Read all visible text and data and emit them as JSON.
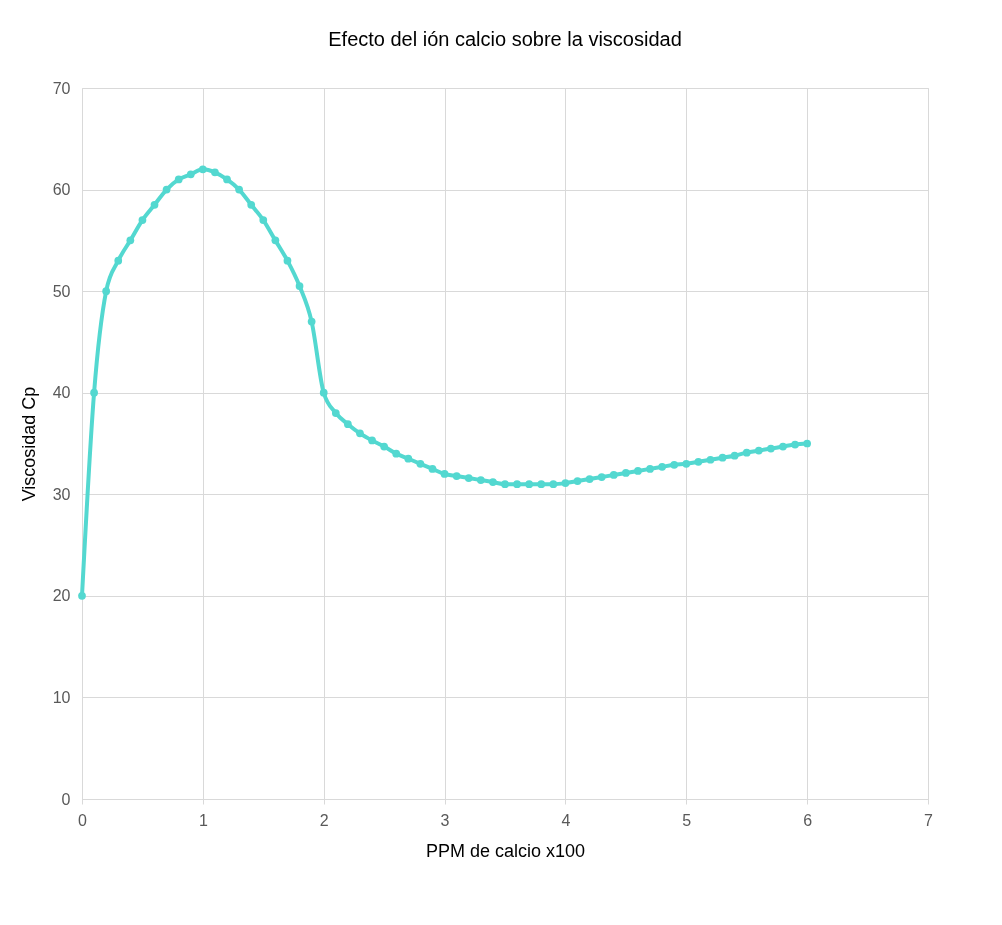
{
  "chart_data": {
    "type": "line",
    "title": "Efecto del ión calcio sobre la viscosidad",
    "xlabel": "PPM de calcio x100",
    "ylabel": "Viscosidad Cp",
    "x": [
      0,
      0.1,
      0.2,
      0.3,
      0.4,
      0.5,
      0.6,
      0.7,
      0.8,
      0.9,
      1.0,
      1.1,
      1.2,
      1.3,
      1.4,
      1.5,
      1.6,
      1.7,
      1.8,
      1.9,
      2.0,
      2.1,
      2.2,
      2.3,
      2.4,
      2.5,
      2.6,
      2.7,
      2.8,
      2.9,
      3.0,
      3.1,
      3.2,
      3.3,
      3.4,
      3.5,
      3.6,
      3.7,
      3.8,
      3.9,
      4.0,
      4.1,
      4.2,
      4.3,
      4.4,
      4.5,
      4.6,
      4.7,
      4.8,
      4.9,
      5.0,
      5.1,
      5.2,
      5.3,
      5.4,
      5.5,
      5.6,
      5.7,
      5.8,
      5.9,
      6.0
    ],
    "series": [
      {
        "color": "#53d8d0",
        "values": [
          20,
          40,
          50,
          53,
          55,
          57,
          58.5,
          60,
          61,
          61.5,
          62,
          61.7,
          61,
          60,
          58.5,
          57,
          55,
          53,
          50.5,
          47,
          40,
          38,
          36.9,
          36,
          35.3,
          34.7,
          34,
          33.5,
          33,
          32.5,
          32,
          31.8,
          31.6,
          31.4,
          31.2,
          31,
          31,
          31,
          31,
          31,
          31.1,
          31.3,
          31.5,
          31.7,
          31.9,
          32.1,
          32.3,
          32.5,
          32.7,
          32.9,
          33,
          33.2,
          33.4,
          33.6,
          33.8,
          34.1,
          34.3,
          34.5,
          34.7,
          34.9,
          35
        ]
      }
    ],
    "xlim": [
      0,
      7
    ],
    "xticks": [
      0,
      1,
      2,
      3,
      4,
      5,
      6,
      7
    ],
    "ylim": [
      0,
      70
    ],
    "yticks": [
      0,
      10,
      20,
      30,
      40,
      50,
      60,
      70
    ],
    "grid": true,
    "legend": false,
    "marker": "circle",
    "line_style": "solid"
  }
}
